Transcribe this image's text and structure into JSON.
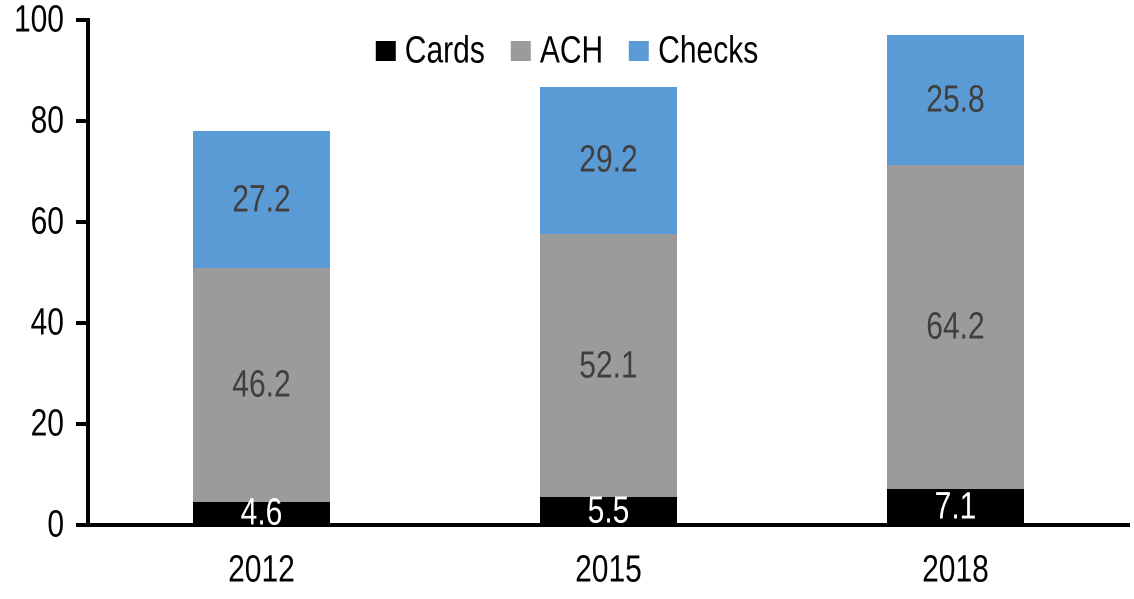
{
  "chart_data": {
    "type": "bar",
    "stacked": true,
    "title": "",
    "xlabel": "",
    "ylabel": "",
    "categories": [
      "2012",
      "2015",
      "2018"
    ],
    "series": [
      {
        "name": "Cards",
        "color": "#000000",
        "label_color": "#FFFFFF",
        "values": [
          4.6,
          5.5,
          7.1
        ]
      },
      {
        "name": "ACH",
        "color": "#9B9B9B",
        "label_color": "#3F3F3F",
        "values": [
          46.2,
          52.1,
          64.2
        ]
      },
      {
        "name": "Checks",
        "color": "#5B9BD5",
        "label_color": "#3F3F3F",
        "values": [
          27.2,
          29.2,
          25.8
        ]
      }
    ],
    "ylim": [
      0,
      100
    ],
    "yticks": [
      0,
      20,
      40,
      60,
      80,
      100
    ],
    "grid": false,
    "legend_position": "top-center",
    "axis_color": "#000000",
    "background_color": "#FFFFFF"
  }
}
